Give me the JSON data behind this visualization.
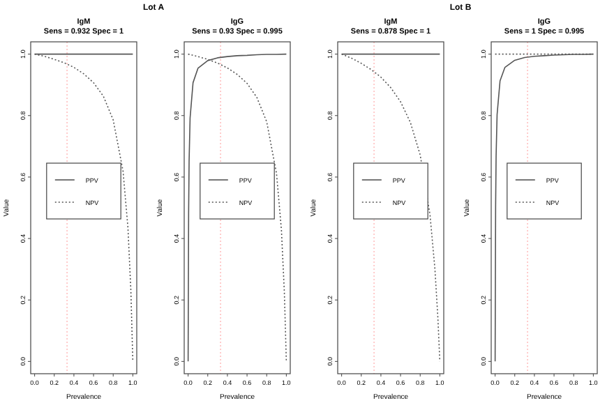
{
  "chart_data": [
    {
      "type": "line",
      "title": "IgM",
      "subtitle": "Sens = 0.932 Spec = 1",
      "annotations": [
        "Lot A"
      ],
      "xlabel": "Prevalence",
      "ylabel": "Value",
      "xlim": [
        -0.04,
        1.04
      ],
      "ylim": [
        -0.04,
        1.04
      ],
      "xticks": [
        {
          "value": 0,
          "label": "0.0"
        },
        {
          "value": 0.2,
          "label": "0.2"
        },
        {
          "value": 0.4,
          "label": "0.4"
        },
        {
          "value": 0.6,
          "label": "0.6"
        },
        {
          "value": 0.8,
          "label": "0.8"
        },
        {
          "value": 1,
          "label": "1.0"
        }
      ],
      "yticks": [
        {
          "value": 0,
          "label": "0.0"
        },
        {
          "value": 0.2,
          "label": "0.2"
        },
        {
          "value": 0.4,
          "label": "0.4"
        },
        {
          "value": 0.6,
          "label": "0.6"
        },
        {
          "value": 0.8,
          "label": "0.8"
        },
        {
          "value": 1,
          "label": "1.0"
        }
      ],
      "legend": "center",
      "ref_lines": [
        {
          "axis": "x",
          "value": 0.33,
          "color": "#ffaaaa",
          "line_style": "dotted"
        }
      ],
      "series": [
        {
          "name": "PPV",
          "color": "#555555",
          "line_style": "solid",
          "x": [
            0,
            0.1,
            0.2,
            0.3,
            0.4,
            0.5,
            0.6,
            0.7,
            0.8,
            0.9,
            0.95,
            0.98,
            1
          ],
          "values": [
            1,
            1,
            1,
            1,
            1,
            1,
            1,
            1,
            1,
            1,
            1,
            1,
            1
          ]
        },
        {
          "name": "NPV",
          "color": "#555555",
          "line_style": "dotted",
          "x": [
            0,
            0.1,
            0.2,
            0.3,
            0.4,
            0.5,
            0.6,
            0.7,
            0.8,
            0.9,
            0.95,
            0.98,
            1
          ],
          "values": [
            1,
            0.993,
            0.983,
            0.972,
            0.957,
            0.936,
            0.907,
            0.863,
            0.786,
            0.62,
            0.436,
            0.231,
            0
          ]
        }
      ]
    },
    {
      "type": "line",
      "title": "IgG",
      "subtitle": "Sens = 0.93 Spec = 0.995",
      "xlabel": "Prevalence",
      "ylabel": "Value",
      "xlim": [
        -0.04,
        1.04
      ],
      "ylim": [
        -0.04,
        1.04
      ],
      "xticks": [
        {
          "value": 0,
          "label": "0.0"
        },
        {
          "value": 0.2,
          "label": "0.2"
        },
        {
          "value": 0.4,
          "label": "0.4"
        },
        {
          "value": 0.6,
          "label": "0.6"
        },
        {
          "value": 0.8,
          "label": "0.8"
        },
        {
          "value": 1,
          "label": "1.0"
        }
      ],
      "yticks": [
        {
          "value": 0,
          "label": "0.0"
        },
        {
          "value": 0.2,
          "label": "0.2"
        },
        {
          "value": 0.4,
          "label": "0.4"
        },
        {
          "value": 0.6,
          "label": "0.6"
        },
        {
          "value": 0.8,
          "label": "0.8"
        },
        {
          "value": 1,
          "label": "1.0"
        }
      ],
      "legend": "center",
      "ref_lines": [
        {
          "axis": "x",
          "value": 0.33,
          "color": "#ffaaaa",
          "line_style": "dotted"
        }
      ],
      "series": [
        {
          "name": "PPV",
          "color": "#555555",
          "line_style": "solid",
          "x": [
            0,
            0.005,
            0.01,
            0.02,
            0.05,
            0.1,
            0.2,
            0.3,
            0.4,
            0.5,
            0.6,
            0.7,
            0.8,
            0.9,
            1
          ],
          "values": [
            0,
            0.483,
            0.653,
            0.792,
            0.907,
            0.954,
            0.979,
            0.988,
            0.992,
            0.995,
            0.996,
            0.998,
            0.999,
            0.999,
            1
          ]
        },
        {
          "name": "NPV",
          "color": "#555555",
          "line_style": "dotted",
          "x": [
            0,
            0.05,
            0.1,
            0.2,
            0.3,
            0.4,
            0.5,
            0.6,
            0.7,
            0.8,
            0.9,
            0.95,
            0.98,
            1
          ],
          "values": [
            1,
            0.996,
            0.992,
            0.983,
            0.971,
            0.955,
            0.934,
            0.905,
            0.859,
            0.78,
            0.612,
            0.428,
            0.225,
            0
          ]
        }
      ]
    },
    {
      "type": "line",
      "title": "IgM",
      "subtitle": "Sens = 0.878 Spec = 1",
      "annotations": [
        "Lot B"
      ],
      "xlabel": "Prevalence",
      "ylabel": "Value",
      "xlim": [
        -0.04,
        1.04
      ],
      "ylim": [
        -0.04,
        1.04
      ],
      "xticks": [
        {
          "value": 0,
          "label": "0.0"
        },
        {
          "value": 0.2,
          "label": "0.2"
        },
        {
          "value": 0.4,
          "label": "0.4"
        },
        {
          "value": 0.6,
          "label": "0.6"
        },
        {
          "value": 0.8,
          "label": "0.8"
        },
        {
          "value": 1,
          "label": "1.0"
        }
      ],
      "yticks": [
        {
          "value": 0,
          "label": "0.0"
        },
        {
          "value": 0.2,
          "label": "0.2"
        },
        {
          "value": 0.4,
          "label": "0.4"
        },
        {
          "value": 0.6,
          "label": "0.6"
        },
        {
          "value": 0.8,
          "label": "0.8"
        },
        {
          "value": 1,
          "label": "1.0"
        }
      ],
      "legend": "center",
      "ref_lines": [
        {
          "axis": "x",
          "value": 0.33,
          "color": "#ffaaaa",
          "line_style": "dotted"
        }
      ],
      "series": [
        {
          "name": "PPV",
          "color": "#555555",
          "line_style": "solid",
          "x": [
            0,
            0.1,
            0.2,
            0.3,
            0.4,
            0.5,
            0.6,
            0.7,
            0.8,
            0.9,
            0.95,
            0.98,
            1
          ],
          "values": [
            1,
            1,
            1,
            1,
            1,
            1,
            1,
            1,
            1,
            1,
            1,
            1,
            1
          ]
        },
        {
          "name": "NPV",
          "color": "#555555",
          "line_style": "dotted",
          "x": [
            0,
            0.1,
            0.2,
            0.3,
            0.4,
            0.5,
            0.6,
            0.7,
            0.8,
            0.9,
            0.95,
            0.98,
            1
          ],
          "values": [
            1,
            0.987,
            0.97,
            0.95,
            0.925,
            0.891,
            0.845,
            0.778,
            0.672,
            0.477,
            0.301,
            0.143,
            0
          ]
        }
      ]
    },
    {
      "type": "line",
      "title": "IgG",
      "subtitle": "Sens = 1 Spec = 0.995",
      "xlabel": "Prevalence",
      "ylabel": "Value",
      "xlim": [
        -0.04,
        1.04
      ],
      "ylim": [
        -0.04,
        1.04
      ],
      "xticks": [
        {
          "value": 0,
          "label": "0.0"
        },
        {
          "value": 0.2,
          "label": "0.2"
        },
        {
          "value": 0.4,
          "label": "0.4"
        },
        {
          "value": 0.6,
          "label": "0.6"
        },
        {
          "value": 0.8,
          "label": "0.8"
        },
        {
          "value": 1,
          "label": "1.0"
        }
      ],
      "yticks": [
        {
          "value": 0,
          "label": "0.0"
        },
        {
          "value": 0.2,
          "label": "0.2"
        },
        {
          "value": 0.4,
          "label": "0.4"
        },
        {
          "value": 0.6,
          "label": "0.6"
        },
        {
          "value": 0.8,
          "label": "0.8"
        },
        {
          "value": 1,
          "label": "1.0"
        }
      ],
      "legend": "center",
      "ref_lines": [
        {
          "axis": "x",
          "value": 0.33,
          "color": "#ffaaaa",
          "line_style": "dotted"
        }
      ],
      "series": [
        {
          "name": "PPV",
          "color": "#555555",
          "line_style": "solid",
          "x": [
            0,
            0.005,
            0.01,
            0.02,
            0.05,
            0.1,
            0.2,
            0.3,
            0.4,
            0.5,
            0.6,
            0.7,
            0.8,
            0.9,
            1
          ],
          "values": [
            0,
            0.501,
            0.669,
            0.803,
            0.913,
            0.957,
            0.98,
            0.989,
            0.993,
            0.995,
            0.997,
            0.998,
            0.999,
            0.999,
            1
          ]
        },
        {
          "name": "NPV",
          "color": "#555555",
          "line_style": "dotted",
          "x": [
            0,
            0.1,
            0.2,
            0.3,
            0.4,
            0.5,
            0.6,
            0.7,
            0.8,
            0.9,
            1
          ],
          "values": [
            1,
            1,
            1,
            1,
            1,
            1,
            1,
            1,
            1,
            1,
            1
          ]
        }
      ]
    }
  ]
}
